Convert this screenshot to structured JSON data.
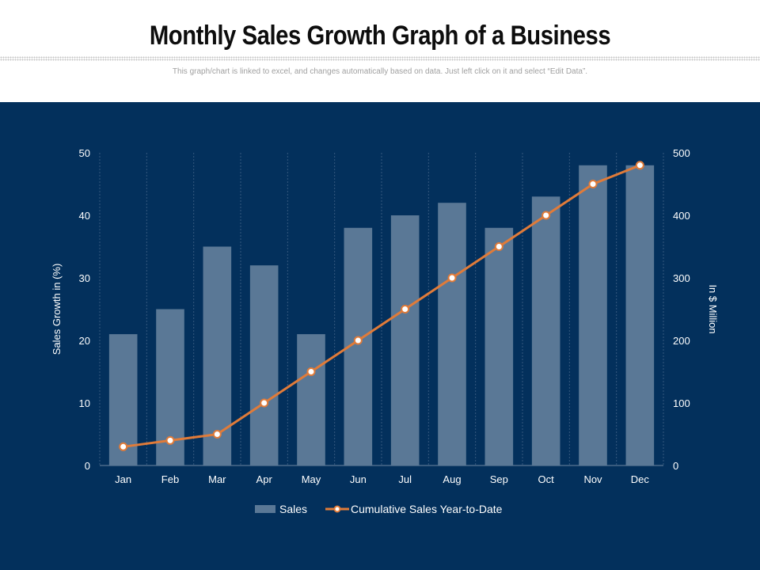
{
  "header": {
    "title": "Monthly Sales Growth Graph of a Business",
    "subtitle": "This graph/chart is linked to excel,  and changes automatically based on data. Just left click on it and select “Edit Data”."
  },
  "colors": {
    "panel": "#03305c",
    "bar": "#5a7896",
    "line": "#e07b39",
    "marker_fill": "#ffffff",
    "text": "#ffffff"
  },
  "chart_data": {
    "type": "bar",
    "categories": [
      "Jan",
      "Feb",
      "Mar",
      "Apr",
      "May",
      "Jun",
      "Jul",
      "Aug",
      "Sep",
      "Oct",
      "Nov",
      "Dec"
    ],
    "series": [
      {
        "name": "Sales",
        "type": "bar",
        "axis": "left",
        "values": [
          21,
          25,
          35,
          32,
          21,
          38,
          40,
          42,
          38,
          43,
          48,
          48
        ]
      },
      {
        "name": "Cumulative Sales Year-to-Date",
        "type": "line",
        "axis": "right",
        "values": [
          30,
          40,
          50,
          100,
          150,
          200,
          250,
          300,
          350,
          400,
          450,
          480
        ]
      }
    ],
    "ylabel": "Sales Growth in (%)",
    "ylabel_right": "In $ Million",
    "ylim": [
      0,
      50
    ],
    "ylim_right": [
      0,
      500
    ],
    "yticks": [
      "0",
      "10",
      "20",
      "30",
      "40",
      "50"
    ],
    "yticks_right": [
      "0",
      "100",
      "200",
      "300",
      "400",
      "500"
    ],
    "grid": "vertical dashed",
    "legend": "bottom"
  }
}
